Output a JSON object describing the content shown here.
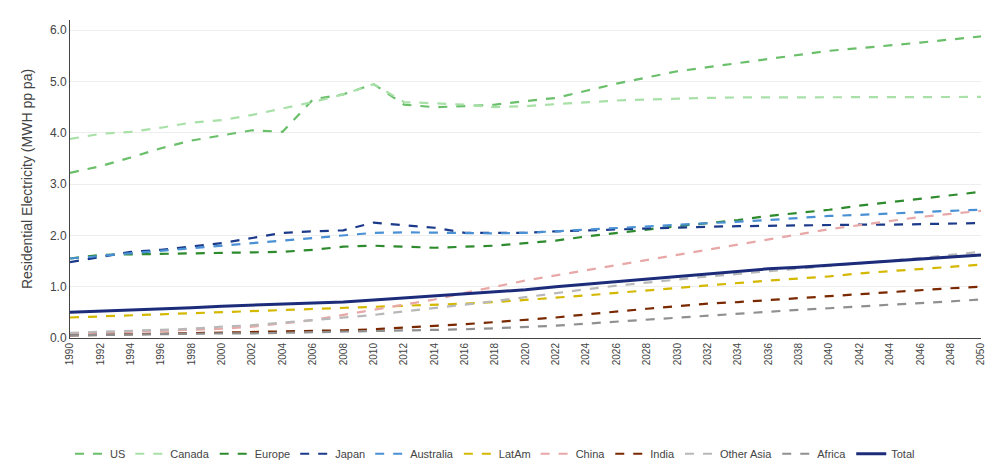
{
  "chart_data": {
    "type": "line",
    "ylabel": "Residential Electricity (MWH pp pa)",
    "x": [
      1990,
      1992,
      1994,
      1996,
      1998,
      2000,
      2002,
      2004,
      2006,
      2008,
      2010,
      2012,
      2014,
      2016,
      2018,
      2020,
      2022,
      2024,
      2026,
      2028,
      2030,
      2032,
      2034,
      2036,
      2038,
      2040,
      2042,
      2044,
      2046,
      2048,
      2050
    ],
    "series": [
      {
        "name": "US",
        "color": "#6abf6a",
        "line_style": "dashed",
        "values": [
          3.22,
          3.35,
          3.52,
          3.7,
          3.85,
          3.95,
          4.05,
          4.02,
          4.65,
          4.75,
          4.95,
          4.55,
          4.5,
          4.52,
          4.55,
          4.62,
          4.68,
          4.82,
          4.96,
          5.08,
          5.2,
          5.28,
          5.36,
          5.44,
          5.52,
          5.6,
          5.65,
          5.7,
          5.76,
          5.82,
          5.88
        ]
      },
      {
        "name": "Canada",
        "color": "#a8e0a8",
        "line_style": "dashed",
        "values": [
          3.88,
          3.98,
          4.02,
          4.1,
          4.2,
          4.25,
          4.35,
          4.48,
          4.6,
          4.75,
          4.95,
          4.6,
          4.58,
          4.55,
          4.5,
          4.52,
          4.56,
          4.6,
          4.63,
          4.65,
          4.67,
          4.68,
          4.69,
          4.69,
          4.7,
          4.7,
          4.7,
          4.7,
          4.7,
          4.7,
          4.7
        ]
      },
      {
        "name": "Europe",
        "color": "#2d8a2d",
        "line_style": "dashed",
        "values": [
          1.55,
          1.62,
          1.63,
          1.64,
          1.65,
          1.65,
          1.66,
          1.68,
          1.72,
          1.78,
          1.8,
          1.78,
          1.76,
          1.78,
          1.8,
          1.85,
          1.9,
          1.98,
          2.05,
          2.12,
          2.18,
          2.24,
          2.3,
          2.38,
          2.44,
          2.5,
          2.58,
          2.65,
          2.72,
          2.78,
          2.85
        ]
      },
      {
        "name": "Japan",
        "color": "#1c3a8a",
        "line_style": "dashed",
        "values": [
          1.48,
          1.58,
          1.68,
          1.72,
          1.78,
          1.85,
          1.95,
          2.05,
          2.08,
          2.1,
          2.25,
          2.2,
          2.15,
          2.05,
          2.05,
          2.05,
          2.08,
          2.1,
          2.12,
          2.14,
          2.16,
          2.17,
          2.18,
          2.19,
          2.2,
          2.2,
          2.21,
          2.21,
          2.22,
          2.23,
          2.24
        ]
      },
      {
        "name": "Australia",
        "color": "#4a90d4",
        "line_style": "dashed",
        "values": [
          1.55,
          1.6,
          1.65,
          1.7,
          1.75,
          1.8,
          1.85,
          1.9,
          1.95,
          2.0,
          2.05,
          2.06,
          2.05,
          2.04,
          2.04,
          2.05,
          2.08,
          2.12,
          2.15,
          2.18,
          2.2,
          2.23,
          2.26,
          2.3,
          2.34,
          2.38,
          2.4,
          2.43,
          2.45,
          2.48,
          2.5
        ]
      },
      {
        "name": "LatAm",
        "color": "#d4b800",
        "line_style": "dashed",
        "values": [
          0.4,
          0.42,
          0.44,
          0.46,
          0.48,
          0.5,
          0.52,
          0.54,
          0.56,
          0.58,
          0.6,
          0.62,
          0.64,
          0.67,
          0.7,
          0.74,
          0.78,
          0.83,
          0.88,
          0.93,
          0.98,
          1.03,
          1.08,
          1.12,
          1.16,
          1.2,
          1.26,
          1.3,
          1.34,
          1.39,
          1.43
        ]
      },
      {
        "name": "China",
        "color": "#e8a8a8",
        "line_style": "dashed",
        "values": [
          0.08,
          0.1,
          0.12,
          0.14,
          0.16,
          0.18,
          0.22,
          0.28,
          0.35,
          0.45,
          0.55,
          0.65,
          0.75,
          0.88,
          1.0,
          1.12,
          1.22,
          1.32,
          1.42,
          1.52,
          1.62,
          1.72,
          1.82,
          1.92,
          2.02,
          2.12,
          2.2,
          2.28,
          2.36,
          2.42,
          2.48
        ]
      },
      {
        "name": "India",
        "color": "#7a2800",
        "line_style": "dashed",
        "values": [
          0.05,
          0.06,
          0.07,
          0.08,
          0.09,
          0.1,
          0.11,
          0.12,
          0.13,
          0.15,
          0.17,
          0.2,
          0.23,
          0.27,
          0.31,
          0.35,
          0.4,
          0.46,
          0.52,
          0.57,
          0.62,
          0.67,
          0.7,
          0.74,
          0.78,
          0.82,
          0.86,
          0.9,
          0.94,
          0.97,
          1.0
        ]
      },
      {
        "name": "Other Asia",
        "color": "#b8b8b8",
        "line_style": "dashed",
        "values": [
          0.1,
          0.12,
          0.14,
          0.16,
          0.18,
          0.22,
          0.25,
          0.3,
          0.35,
          0.4,
          0.45,
          0.52,
          0.58,
          0.65,
          0.72,
          0.8,
          0.88,
          0.95,
          1.02,
          1.08,
          1.15,
          1.2,
          1.25,
          1.3,
          1.35,
          1.4,
          1.45,
          1.5,
          1.56,
          1.62,
          1.68
        ]
      },
      {
        "name": "Africa",
        "color": "#909090",
        "line_style": "dashed",
        "values": [
          0.05,
          0.06,
          0.07,
          0.07,
          0.08,
          0.09,
          0.09,
          0.1,
          0.11,
          0.12,
          0.13,
          0.14,
          0.15,
          0.17,
          0.19,
          0.21,
          0.24,
          0.28,
          0.32,
          0.36,
          0.4,
          0.44,
          0.48,
          0.52,
          0.55,
          0.58,
          0.62,
          0.65,
          0.68,
          0.72,
          0.75
        ]
      },
      {
        "name": "Total",
        "color": "#1c2c7a",
        "line_style": "solid",
        "values": [
          0.5,
          0.52,
          0.55,
          0.57,
          0.59,
          0.62,
          0.64,
          0.66,
          0.68,
          0.7,
          0.74,
          0.78,
          0.82,
          0.86,
          0.9,
          0.94,
          1.0,
          1.05,
          1.1,
          1.15,
          1.2,
          1.25,
          1.3,
          1.35,
          1.38,
          1.42,
          1.46,
          1.5,
          1.54,
          1.58,
          1.62
        ]
      }
    ],
    "xlim": [
      1990,
      2050
    ],
    "xticks": [
      1990,
      1992,
      1994,
      1996,
      1998,
      2000,
      2002,
      2004,
      2006,
      2008,
      2010,
      2012,
      2014,
      2016,
      2018,
      2020,
      2022,
      2024,
      2026,
      2028,
      2030,
      2032,
      2034,
      2036,
      2038,
      2040,
      2042,
      2044,
      2046,
      2048,
      2050
    ],
    "ylim": [
      0.0,
      6.2
    ],
    "yticks": [
      {
        "value": 0.0,
        "label": "0.0"
      },
      {
        "value": 1.0,
        "label": "1.0"
      },
      {
        "value": 2.0,
        "label": "2.0"
      },
      {
        "value": 3.0,
        "label": "3.0"
      },
      {
        "value": 4.0,
        "label": "4.0"
      },
      {
        "value": 5.0,
        "label": "5.0"
      },
      {
        "value": 6.0,
        "label": "6.0"
      }
    ],
    "grid": true,
    "legend": "bottom"
  }
}
